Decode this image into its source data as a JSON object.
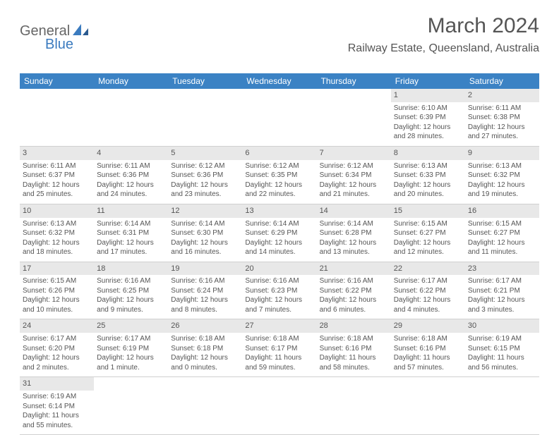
{
  "logo": {
    "part1": "General",
    "part2": "Blue"
  },
  "title": "March 2024",
  "location": "Railway Estate, Queensland, Australia",
  "colors": {
    "header_bg": "#3b82c4",
    "header_text": "#ffffff",
    "daynum_bg": "#e8e8e8",
    "text": "#555555",
    "border": "#d0d0d0",
    "logo_gray": "#666666",
    "logo_blue": "#3b7bbf"
  },
  "weekdays": [
    "Sunday",
    "Monday",
    "Tuesday",
    "Wednesday",
    "Thursday",
    "Friday",
    "Saturday"
  ],
  "grid": {
    "columns": 7,
    "rows": 6
  },
  "cells": [
    {
      "empty": true
    },
    {
      "empty": true
    },
    {
      "empty": true
    },
    {
      "empty": true
    },
    {
      "empty": true
    },
    {
      "day": "1",
      "sunrise": "Sunrise: 6:10 AM",
      "sunset": "Sunset: 6:39 PM",
      "daylight1": "Daylight: 12 hours",
      "daylight2": "and 28 minutes."
    },
    {
      "day": "2",
      "sunrise": "Sunrise: 6:11 AM",
      "sunset": "Sunset: 6:38 PM",
      "daylight1": "Daylight: 12 hours",
      "daylight2": "and 27 minutes."
    },
    {
      "day": "3",
      "sunrise": "Sunrise: 6:11 AM",
      "sunset": "Sunset: 6:37 PM",
      "daylight1": "Daylight: 12 hours",
      "daylight2": "and 25 minutes."
    },
    {
      "day": "4",
      "sunrise": "Sunrise: 6:11 AM",
      "sunset": "Sunset: 6:36 PM",
      "daylight1": "Daylight: 12 hours",
      "daylight2": "and 24 minutes."
    },
    {
      "day": "5",
      "sunrise": "Sunrise: 6:12 AM",
      "sunset": "Sunset: 6:36 PM",
      "daylight1": "Daylight: 12 hours",
      "daylight2": "and 23 minutes."
    },
    {
      "day": "6",
      "sunrise": "Sunrise: 6:12 AM",
      "sunset": "Sunset: 6:35 PM",
      "daylight1": "Daylight: 12 hours",
      "daylight2": "and 22 minutes."
    },
    {
      "day": "7",
      "sunrise": "Sunrise: 6:12 AM",
      "sunset": "Sunset: 6:34 PM",
      "daylight1": "Daylight: 12 hours",
      "daylight2": "and 21 minutes."
    },
    {
      "day": "8",
      "sunrise": "Sunrise: 6:13 AM",
      "sunset": "Sunset: 6:33 PM",
      "daylight1": "Daylight: 12 hours",
      "daylight2": "and 20 minutes."
    },
    {
      "day": "9",
      "sunrise": "Sunrise: 6:13 AM",
      "sunset": "Sunset: 6:32 PM",
      "daylight1": "Daylight: 12 hours",
      "daylight2": "and 19 minutes."
    },
    {
      "day": "10",
      "sunrise": "Sunrise: 6:13 AM",
      "sunset": "Sunset: 6:32 PM",
      "daylight1": "Daylight: 12 hours",
      "daylight2": "and 18 minutes."
    },
    {
      "day": "11",
      "sunrise": "Sunrise: 6:14 AM",
      "sunset": "Sunset: 6:31 PM",
      "daylight1": "Daylight: 12 hours",
      "daylight2": "and 17 minutes."
    },
    {
      "day": "12",
      "sunrise": "Sunrise: 6:14 AM",
      "sunset": "Sunset: 6:30 PM",
      "daylight1": "Daylight: 12 hours",
      "daylight2": "and 16 minutes."
    },
    {
      "day": "13",
      "sunrise": "Sunrise: 6:14 AM",
      "sunset": "Sunset: 6:29 PM",
      "daylight1": "Daylight: 12 hours",
      "daylight2": "and 14 minutes."
    },
    {
      "day": "14",
      "sunrise": "Sunrise: 6:14 AM",
      "sunset": "Sunset: 6:28 PM",
      "daylight1": "Daylight: 12 hours",
      "daylight2": "and 13 minutes."
    },
    {
      "day": "15",
      "sunrise": "Sunrise: 6:15 AM",
      "sunset": "Sunset: 6:27 PM",
      "daylight1": "Daylight: 12 hours",
      "daylight2": "and 12 minutes."
    },
    {
      "day": "16",
      "sunrise": "Sunrise: 6:15 AM",
      "sunset": "Sunset: 6:27 PM",
      "daylight1": "Daylight: 12 hours",
      "daylight2": "and 11 minutes."
    },
    {
      "day": "17",
      "sunrise": "Sunrise: 6:15 AM",
      "sunset": "Sunset: 6:26 PM",
      "daylight1": "Daylight: 12 hours",
      "daylight2": "and 10 minutes."
    },
    {
      "day": "18",
      "sunrise": "Sunrise: 6:16 AM",
      "sunset": "Sunset: 6:25 PM",
      "daylight1": "Daylight: 12 hours",
      "daylight2": "and 9 minutes."
    },
    {
      "day": "19",
      "sunrise": "Sunrise: 6:16 AM",
      "sunset": "Sunset: 6:24 PM",
      "daylight1": "Daylight: 12 hours",
      "daylight2": "and 8 minutes."
    },
    {
      "day": "20",
      "sunrise": "Sunrise: 6:16 AM",
      "sunset": "Sunset: 6:23 PM",
      "daylight1": "Daylight: 12 hours",
      "daylight2": "and 7 minutes."
    },
    {
      "day": "21",
      "sunrise": "Sunrise: 6:16 AM",
      "sunset": "Sunset: 6:22 PM",
      "daylight1": "Daylight: 12 hours",
      "daylight2": "and 6 minutes."
    },
    {
      "day": "22",
      "sunrise": "Sunrise: 6:17 AM",
      "sunset": "Sunset: 6:22 PM",
      "daylight1": "Daylight: 12 hours",
      "daylight2": "and 4 minutes."
    },
    {
      "day": "23",
      "sunrise": "Sunrise: 6:17 AM",
      "sunset": "Sunset: 6:21 PM",
      "daylight1": "Daylight: 12 hours",
      "daylight2": "and 3 minutes."
    },
    {
      "day": "24",
      "sunrise": "Sunrise: 6:17 AM",
      "sunset": "Sunset: 6:20 PM",
      "daylight1": "Daylight: 12 hours",
      "daylight2": "and 2 minutes."
    },
    {
      "day": "25",
      "sunrise": "Sunrise: 6:17 AM",
      "sunset": "Sunset: 6:19 PM",
      "daylight1": "Daylight: 12 hours",
      "daylight2": "and 1 minute."
    },
    {
      "day": "26",
      "sunrise": "Sunrise: 6:18 AM",
      "sunset": "Sunset: 6:18 PM",
      "daylight1": "Daylight: 12 hours",
      "daylight2": "and 0 minutes."
    },
    {
      "day": "27",
      "sunrise": "Sunrise: 6:18 AM",
      "sunset": "Sunset: 6:17 PM",
      "daylight1": "Daylight: 11 hours",
      "daylight2": "and 59 minutes."
    },
    {
      "day": "28",
      "sunrise": "Sunrise: 6:18 AM",
      "sunset": "Sunset: 6:16 PM",
      "daylight1": "Daylight: 11 hours",
      "daylight2": "and 58 minutes."
    },
    {
      "day": "29",
      "sunrise": "Sunrise: 6:18 AM",
      "sunset": "Sunset: 6:16 PM",
      "daylight1": "Daylight: 11 hours",
      "daylight2": "and 57 minutes."
    },
    {
      "day": "30",
      "sunrise": "Sunrise: 6:19 AM",
      "sunset": "Sunset: 6:15 PM",
      "daylight1": "Daylight: 11 hours",
      "daylight2": "and 56 minutes."
    },
    {
      "day": "31",
      "sunrise": "Sunrise: 6:19 AM",
      "sunset": "Sunset: 6:14 PM",
      "daylight1": "Daylight: 11 hours",
      "daylight2": "and 55 minutes."
    },
    {
      "empty": true
    },
    {
      "empty": true
    },
    {
      "empty": true
    },
    {
      "empty": true
    },
    {
      "empty": true
    },
    {
      "empty": true
    }
  ]
}
